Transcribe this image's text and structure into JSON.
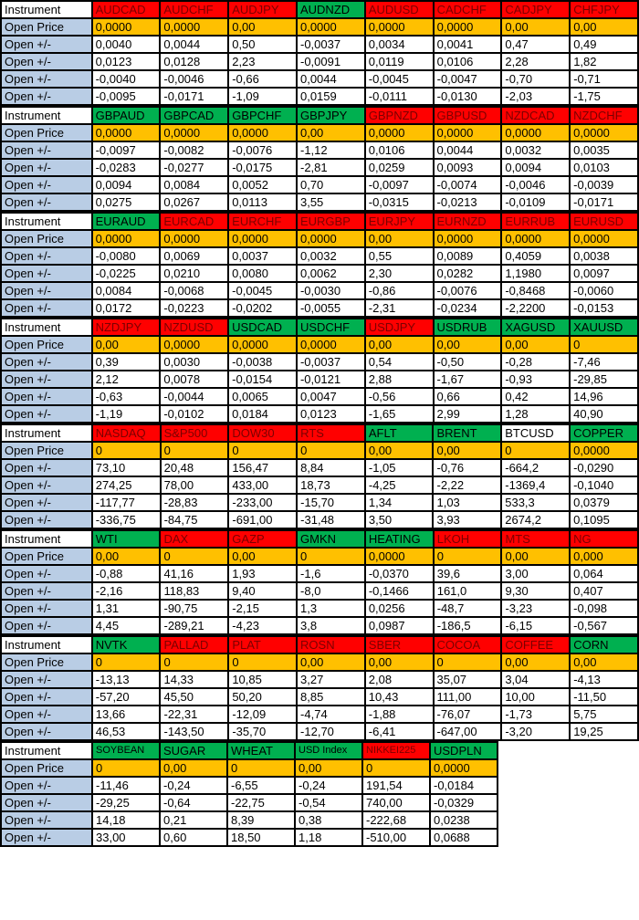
{
  "labels": {
    "instrument": "Instrument",
    "open_price": "Open Price",
    "open_change": "Open +/-"
  },
  "colors": {
    "red_header_bg": "#FF0000",
    "red_header_text": "#7B0000",
    "green_header_bg": "#00B050",
    "plain_header_bg": "#FFFFFF",
    "price_bg": "#FFC000",
    "label_bg": "#B9CDE5",
    "cell_bg": "#FFFFFF",
    "grid": "#000000"
  },
  "blocks": [
    {
      "instruments": [
        {
          "name": "AUDCAD",
          "header_color": "red",
          "open_price": "0,0000",
          "open_changes": [
            "0,0040",
            "0,0123",
            "-0,0040",
            "-0,0095"
          ]
        },
        {
          "name": "AUDCHF",
          "header_color": "red",
          "open_price": "0,0000",
          "open_changes": [
            "0,0044",
            "0,0128",
            "-0,0046",
            "-0,0171"
          ]
        },
        {
          "name": "AUDJPY",
          "header_color": "red",
          "open_price": "0,00",
          "open_changes": [
            "0,50",
            "2,23",
            "-0,66",
            "-1,09"
          ]
        },
        {
          "name": "AUDNZD",
          "header_color": "green",
          "open_price": "0,0000",
          "open_changes": [
            "-0,0037",
            "-0,0091",
            "0,0044",
            "0,0159"
          ]
        },
        {
          "name": "AUDUSD",
          "header_color": "red",
          "open_price": "0,0000",
          "open_changes": [
            "0,0034",
            "0,0119",
            "-0,0045",
            "-0,0111"
          ]
        },
        {
          "name": "CADCHF",
          "header_color": "red",
          "open_price": "0,0000",
          "open_changes": [
            "0,0041",
            "0,0106",
            "-0,0047",
            "-0,0130"
          ]
        },
        {
          "name": "CADJPY",
          "header_color": "red",
          "open_price": "0,00",
          "open_changes": [
            "0,47",
            "2,28",
            "-0,70",
            "-2,03"
          ]
        },
        {
          "name": "CHFJPY",
          "header_color": "red",
          "open_price": "0,00",
          "open_changes": [
            "0,49",
            "1,82",
            "-0,71",
            "-1,75"
          ]
        }
      ]
    },
    {
      "instruments": [
        {
          "name": "GBPAUD",
          "header_color": "green",
          "open_price": "0,0000",
          "open_changes": [
            "-0,0097",
            "-0,0283",
            "0,0094",
            "0,0275"
          ]
        },
        {
          "name": "GBPCAD",
          "header_color": "green",
          "open_price": "0,0000",
          "open_changes": [
            "-0,0082",
            "-0,0277",
            "0,0084",
            "0,0267"
          ]
        },
        {
          "name": "GBPCHF",
          "header_color": "green",
          "open_price": "0,0000",
          "open_changes": [
            "-0,0076",
            "-0,0175",
            "0,0052",
            "0,0113"
          ]
        },
        {
          "name": "GBPJPY",
          "header_color": "green",
          "open_price": "0,00",
          "open_changes": [
            "-1,12",
            "-2,81",
            "0,70",
            "3,55"
          ]
        },
        {
          "name": "GBPNZD",
          "header_color": "red",
          "open_price": "0,0000",
          "open_changes": [
            "0,0106",
            "0,0259",
            "-0,0097",
            "-0,0315"
          ]
        },
        {
          "name": "GBPUSD",
          "header_color": "red",
          "open_price": "0,0000",
          "open_changes": [
            "0,0044",
            "0,0093",
            "-0,0074",
            "-0,0213"
          ]
        },
        {
          "name": "NZDCAD",
          "header_color": "red",
          "open_price": "0,0000",
          "open_changes": [
            "0,0032",
            "0,0094",
            "-0,0046",
            "-0,0109"
          ]
        },
        {
          "name": "NZDCHF",
          "header_color": "red",
          "open_price": "0,0000",
          "open_changes": [
            "0,0035",
            "0,0103",
            "-0,0039",
            "-0,0171"
          ]
        }
      ]
    },
    {
      "instruments": [
        {
          "name": "EURAUD",
          "header_color": "green",
          "open_price": "0,0000",
          "open_changes": [
            "-0,0080",
            "-0,0225",
            "0,0084",
            "0,0172"
          ]
        },
        {
          "name": "EURCAD",
          "header_color": "red",
          "open_price": "0,0000",
          "open_changes": [
            "0,0069",
            "0,0210",
            "-0,0068",
            "-0,0223"
          ]
        },
        {
          "name": "EURCHF",
          "header_color": "red",
          "open_price": "0,0000",
          "open_changes": [
            "0,0037",
            "0,0080",
            "-0,0045",
            "-0,0202"
          ]
        },
        {
          "name": "EURGBP",
          "header_color": "red",
          "open_price": "0,0000",
          "open_changes": [
            "0,0032",
            "0,0062",
            "-0,0030",
            "-0,0055"
          ]
        },
        {
          "name": "EURJPY",
          "header_color": "red",
          "open_price": "0,00",
          "open_changes": [
            "0,55",
            "2,30",
            "-0,86",
            "-2,31"
          ]
        },
        {
          "name": "EURNZD",
          "header_color": "red",
          "open_price": "0,0000",
          "open_changes": [
            "0,0089",
            "0,0282",
            "-0,0076",
            "-0,0234"
          ]
        },
        {
          "name": "EURRUB",
          "header_color": "red",
          "open_price": "0,0000",
          "open_changes": [
            "0,4059",
            "1,1980",
            "-0,8468",
            "-2,2200"
          ]
        },
        {
          "name": "EURUSD",
          "header_color": "red",
          "open_price": "0,0000",
          "open_changes": [
            "0,0038",
            "0,0097",
            "-0,0060",
            "-0,0153"
          ]
        }
      ]
    },
    {
      "instruments": [
        {
          "name": "NZDJPY",
          "header_color": "red",
          "open_price": "0,00",
          "open_changes": [
            "0,39",
            "2,12",
            "-0,63",
            "-1,19"
          ]
        },
        {
          "name": "NZDUSD",
          "header_color": "red",
          "open_price": "0,0000",
          "open_changes": [
            "0,0030",
            "0,0078",
            "-0,0044",
            "-0,0102"
          ]
        },
        {
          "name": "USDCAD",
          "header_color": "green",
          "open_price": "0,0000",
          "open_changes": [
            "-0,0038",
            "-0,0154",
            "0,0065",
            "0,0184"
          ]
        },
        {
          "name": "USDCHF",
          "header_color": "green",
          "open_price": "0,0000",
          "open_changes": [
            "-0,0037",
            "-0,0121",
            "0,0047",
            "0,0123"
          ]
        },
        {
          "name": "USDJPY",
          "header_color": "red",
          "open_price": "0,00",
          "open_changes": [
            "0,54",
            "2,88",
            "-0,56",
            "-1,65"
          ]
        },
        {
          "name": "USDRUB",
          "header_color": "green",
          "open_price": "0,00",
          "open_changes": [
            "-0,50",
            "-1,67",
            "0,66",
            "2,99"
          ]
        },
        {
          "name": "XAGUSD",
          "header_color": "green",
          "open_price": "0,00",
          "open_changes": [
            "-0,28",
            "-0,93",
            "0,42",
            "1,28"
          ]
        },
        {
          "name": "XAUUSD",
          "header_color": "green",
          "open_price": "0",
          "open_changes": [
            "-7,46",
            "-29,85",
            "14,96",
            "40,90"
          ]
        }
      ]
    },
    {
      "instruments": [
        {
          "name": "NASDAQ",
          "header_color": "red",
          "open_price": "0",
          "open_changes": [
            "73,10",
            "274,25",
            "-117,77",
            "-336,75"
          ]
        },
        {
          "name": "S&P500",
          "header_color": "red",
          "open_price": "0",
          "open_changes": [
            "20,48",
            "78,00",
            "-28,83",
            "-84,75"
          ]
        },
        {
          "name": "DOW30",
          "header_color": "red",
          "open_price": "0",
          "open_changes": [
            "156,47",
            "433,00",
            "-233,00",
            "-691,00"
          ]
        },
        {
          "name": "RTS",
          "header_color": "red",
          "open_price": "0",
          "open_changes": [
            "8,84",
            "18,73",
            "-15,70",
            "-31,48"
          ]
        },
        {
          "name": "AFLT",
          "header_color": "green",
          "open_price": "0,00",
          "open_changes": [
            "-1,05",
            "-4,25",
            "1,34",
            "3,50"
          ]
        },
        {
          "name": "BRENT",
          "header_color": "green",
          "open_price": "0,00",
          "open_changes": [
            "-0,76",
            "-2,22",
            "1,03",
            "3,93"
          ]
        },
        {
          "name": "BTCUSD",
          "header_color": "plain",
          "open_price": "0",
          "open_changes": [
            "-664,2",
            "-1369,4",
            "533,3",
            "2674,2"
          ]
        },
        {
          "name": "COPPER",
          "header_color": "green",
          "open_price": "0,0000",
          "open_changes": [
            "-0,0290",
            "-0,1040",
            "0,0379",
            "0,1095"
          ]
        }
      ]
    },
    {
      "instruments": [
        {
          "name": "WTI",
          "header_color": "green",
          "open_price": "0,00",
          "open_changes": [
            "-0,88",
            "-2,16",
            "1,31",
            "4,45"
          ]
        },
        {
          "name": "DAX",
          "header_color": "red",
          "open_price": "0",
          "open_changes": [
            "41,16",
            "118,83",
            "-90,75",
            "-289,21"
          ]
        },
        {
          "name": "GAZP",
          "header_color": "red",
          "open_price": "0,00",
          "open_changes": [
            "1,93",
            "9,40",
            "-2,15",
            "-4,23"
          ]
        },
        {
          "name": "GMKN",
          "header_color": "green",
          "open_price": "0",
          "open_changes": [
            "-1,6",
            "-8,0",
            "1,3",
            "3,8"
          ]
        },
        {
          "name": "HEATING",
          "header_color": "green",
          "open_price": "0,0000",
          "open_changes": [
            "-0,0370",
            "-0,1466",
            "0,0256",
            "0,0987"
          ]
        },
        {
          "name": "LKOH",
          "header_color": "red",
          "open_price": "0",
          "open_changes": [
            "39,6",
            "161,0",
            "-48,7",
            "-186,5"
          ]
        },
        {
          "name": "MTS",
          "header_color": "red",
          "open_price": "0,00",
          "open_changes": [
            "3,00",
            "9,30",
            "-3,23",
            "-6,15"
          ]
        },
        {
          "name": "NG",
          "header_color": "red",
          "open_price": "0,000",
          "open_changes": [
            "0,064",
            "0,407",
            "-0,098",
            "-0,567"
          ]
        }
      ]
    },
    {
      "instruments": [
        {
          "name": "NVTK",
          "header_color": "green",
          "open_price": "0",
          "open_changes": [
            "-13,13",
            "-57,20",
            "13,66",
            "46,53"
          ]
        },
        {
          "name": "PALLAD",
          "header_color": "red",
          "open_price": "0",
          "open_changes": [
            "14,33",
            "45,50",
            "-22,31",
            "-143,50"
          ]
        },
        {
          "name": "PLAT",
          "header_color": "red",
          "open_price": "0",
          "open_changes": [
            "10,85",
            "50,20",
            "-12,09",
            "-35,70"
          ]
        },
        {
          "name": "ROSN",
          "header_color": "red",
          "open_price": "0,00",
          "open_changes": [
            "3,27",
            "8,85",
            "-4,74",
            "-12,70"
          ]
        },
        {
          "name": "SBER",
          "header_color": "red",
          "open_price": "0,00",
          "open_changes": [
            "2,08",
            "10,43",
            "-1,88",
            "-6,41"
          ]
        },
        {
          "name": "COCOA",
          "header_color": "red",
          "open_price": "0",
          "open_changes": [
            "35,07",
            "111,00",
            "-76,07",
            "-647,00"
          ]
        },
        {
          "name": "COFFEE",
          "header_color": "red",
          "open_price": "0,00",
          "open_changes": [
            "3,04",
            "10,00",
            "-1,73",
            "-3,20"
          ]
        },
        {
          "name": "CORN",
          "header_color": "green",
          "open_price": "0,00",
          "open_changes": [
            "-4,13",
            "-11,50",
            "5,75",
            "19,25"
          ]
        }
      ]
    },
    {
      "instruments": [
        {
          "name": "SOYBEAN",
          "header_color": "green",
          "small": true,
          "open_price": "0",
          "open_changes": [
            "-11,46",
            "-29,25",
            "14,18",
            "33,00"
          ]
        },
        {
          "name": "SUGAR",
          "header_color": "green",
          "open_price": "0,00",
          "open_changes": [
            "-0,24",
            "-0,64",
            "0,21",
            "0,60"
          ]
        },
        {
          "name": "WHEAT",
          "header_color": "green",
          "open_price": "0",
          "open_changes": [
            "-6,55",
            "-22,75",
            "8,39",
            "18,50"
          ]
        },
        {
          "name": "USD Index",
          "header_color": "green",
          "small": true,
          "open_price": "0,00",
          "open_changes": [
            "-0,24",
            "-0,54",
            "0,38",
            "1,18"
          ]
        },
        {
          "name": "NIKKEI225",
          "header_color": "red",
          "small": true,
          "open_price": "0",
          "open_changes": [
            "191,54",
            "740,00",
            "-222,68",
            "-510,00"
          ]
        },
        {
          "name": "USDPLN",
          "header_color": "green",
          "open_price": "0,0000",
          "open_changes": [
            "-0,0184",
            "-0,0329",
            "0,0238",
            "0,0688"
          ]
        }
      ]
    }
  ]
}
